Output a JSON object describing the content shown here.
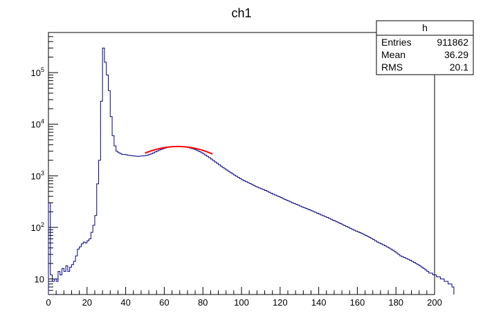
{
  "chart_data": {
    "type": "histogram",
    "title": "ch1",
    "xlabel": "",
    "ylabel": "",
    "xlim": [
      0,
      200
    ],
    "ylim": [
      5,
      600000
    ],
    "yscale": "log",
    "grid": false,
    "line_color": "#000080",
    "fit_color": "#ff0000",
    "x_ticks": [
      0,
      20,
      40,
      60,
      80,
      100,
      120,
      140,
      160,
      180,
      200
    ],
    "y_ticks": [
      {
        "value": 10,
        "base": "10",
        "exp": ""
      },
      {
        "value": 100,
        "base": "10",
        "exp": "2"
      },
      {
        "value": 1000,
        "base": "10",
        "exp": "3"
      },
      {
        "value": 10000,
        "base": "10",
        "exp": "4"
      },
      {
        "value": 100000,
        "base": "10",
        "exp": "5"
      }
    ],
    "bin_width": 1,
    "series": [
      {
        "kind": "histogram",
        "x_start": 0,
        "values": [
          300,
          12,
          9,
          10,
          9,
          14,
          12,
          16,
          14,
          18,
          14,
          17,
          19,
          22,
          28,
          38,
          42,
          48,
          52,
          50,
          55,
          60,
          80,
          110,
          170,
          700,
          2000,
          28000,
          300000,
          160000,
          90000,
          45000,
          14000,
          6000,
          3800,
          3000,
          2800,
          2700,
          2600,
          2600,
          2550,
          2500,
          2480,
          2450,
          2420,
          2400,
          2380,
          2400,
          2420,
          2440,
          2470,
          2520,
          2600,
          2680,
          2780,
          2900,
          3020,
          3150,
          3250,
          3350,
          3440,
          3520,
          3580,
          3620,
          3650,
          3680,
          3700,
          3710,
          3700,
          3680,
          3650,
          3600,
          3540,
          3460,
          3380,
          3280,
          3170,
          3050,
          2930,
          2800,
          2660,
          2520,
          2380,
          2240,
          2110,
          1980,
          1860,
          1750,
          1640,
          1540,
          1450,
          1370,
          1290,
          1220,
          1150,
          1090,
          1030,
          980,
          930,
          880,
          840,
          800,
          770,
          740,
          710,
          680,
          650,
          620,
          600,
          580,
          560,
          540,
          520,
          500,
          480,
          460,
          440,
          425,
          410,
          395,
          380,
          365,
          350,
          338,
          325,
          312,
          300,
          290,
          280,
          270,
          260,
          250,
          242,
          234,
          226,
          218,
          210,
          202,
          195,
          188,
          181,
          174,
          168,
          162,
          156,
          150,
          144,
          138,
          133,
          128,
          123,
          118,
          113,
          108,
          104,
          100,
          96,
          92,
          88,
          85,
          82,
          79,
          76,
          73,
          70,
          67,
          64,
          61,
          58,
          55,
          52,
          50,
          48,
          46,
          44,
          42,
          40,
          38,
          36,
          34,
          32,
          30,
          28,
          27,
          26,
          25,
          24,
          23,
          22,
          21,
          20,
          19,
          18,
          17,
          16,
          15,
          14,
          13,
          13,
          12,
          12,
          11,
          11,
          10,
          10,
          9,
          9,
          8,
          8,
          7
        ]
      },
      {
        "kind": "fit",
        "name": "gaus",
        "x_range": [
          50,
          85
        ],
        "constant": 3700,
        "mean": 67,
        "sigma": 22
      }
    ]
  },
  "stats_box": {
    "title": "h",
    "rows": [
      {
        "label": "Entries",
        "value": "911862"
      },
      {
        "label": "Mean",
        "value": "36.29"
      },
      {
        "label": "RMS",
        "value": "20.1"
      }
    ]
  }
}
